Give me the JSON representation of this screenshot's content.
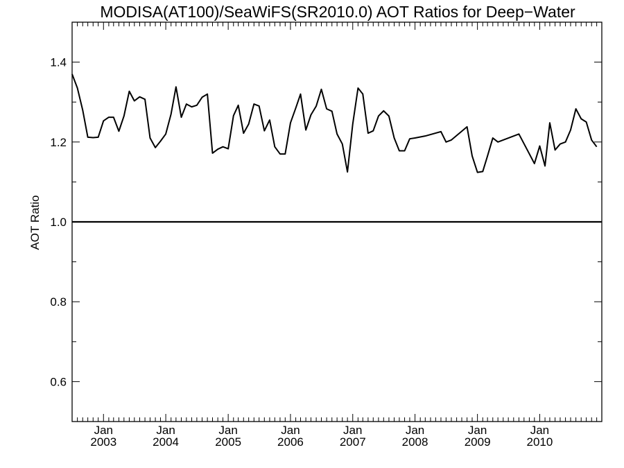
{
  "chart_data": {
    "type": "line",
    "title": "MODISA(AT100)/SeaWiFS(SR2010.0)  AOT Ratios for Deep−Water",
    "xlabel": "",
    "ylabel": "AOT Ratio",
    "xlim": [
      "2002-07-01",
      "2010-12-31"
    ],
    "ylim": [
      0.5,
      1.5
    ],
    "y_ticks": [
      "0.6",
      "0.8",
      "1.0",
      "1.2",
      "1.4"
    ],
    "x_ticks": [
      {
        "month": "Jan",
        "year": "2003",
        "date": "2003-01-01"
      },
      {
        "month": "Jan",
        "year": "2004",
        "date": "2004-01-01"
      },
      {
        "month": "Jan",
        "year": "2005",
        "date": "2005-01-01"
      },
      {
        "month": "Jan",
        "year": "2006",
        "date": "2006-01-01"
      },
      {
        "month": "Jan",
        "year": "2007",
        "date": "2007-01-01"
      },
      {
        "month": "Jan",
        "year": "2008",
        "date": "2008-01-01"
      },
      {
        "month": "Jan",
        "year": "2009",
        "date": "2009-01-01"
      },
      {
        "month": "Jan",
        "year": "2010",
        "date": "2010-01-01"
      }
    ],
    "reference_line": 1.0,
    "grid": false,
    "series": [
      {
        "x": [
          "2002-07-01",
          "2002-08-01",
          "2002-09-01",
          "2002-10-01",
          "2002-11-01",
          "2002-12-01",
          "2003-01-01",
          "2003-02-01",
          "2003-03-01",
          "2003-04-01",
          "2003-05-01",
          "2003-06-01",
          "2003-07-01",
          "2003-08-01",
          "2003-09-01",
          "2003-10-01",
          "2003-11-01",
          "2003-12-01",
          "2004-01-01",
          "2004-02-01",
          "2004-03-01",
          "2004-04-01",
          "2004-05-01",
          "2004-06-01",
          "2004-07-01",
          "2004-08-01",
          "2004-09-01",
          "2004-10-01",
          "2004-11-01",
          "2004-12-01",
          "2005-01-01",
          "2005-02-01",
          "2005-03-01",
          "2005-04-01",
          "2005-05-01",
          "2005-06-01",
          "2005-07-01",
          "2005-08-01",
          "2005-09-01",
          "2005-10-01",
          "2005-11-01",
          "2005-12-01",
          "2006-01-01",
          "2006-02-01",
          "2006-03-01",
          "2006-04-01",
          "2006-05-01",
          "2006-06-01",
          "2006-07-01",
          "2006-08-01",
          "2006-09-01",
          "2006-10-01",
          "2006-11-01",
          "2006-12-01",
          "2007-01-01",
          "2007-02-01",
          "2007-03-01",
          "2007-04-01",
          "2007-05-01",
          "2007-06-01",
          "2007-07-01",
          "2007-08-01",
          "2007-09-01",
          "2007-10-01",
          "2007-11-01",
          "2007-12-01",
          "2008-01-01",
          "2008-03-01",
          "2008-06-01",
          "2008-07-01",
          "2008-08-01",
          "2008-11-01",
          "2008-12-01",
          "2009-01-01",
          "2009-02-01",
          "2009-03-01",
          "2009-04-01",
          "2009-05-01",
          "2009-09-01",
          "2009-12-01",
          "2010-01-01",
          "2010-02-01",
          "2010-03-01",
          "2010-04-01",
          "2010-05-01",
          "2010-06-01",
          "2010-07-01",
          "2010-08-01",
          "2010-09-01",
          "2010-10-01",
          "2010-11-01",
          "2010-12-01"
        ],
        "y": [
          1.37,
          1.335,
          1.28,
          1.212,
          1.211,
          1.212,
          1.253,
          1.262,
          1.262,
          1.227,
          1.265,
          1.327,
          1.303,
          1.313,
          1.307,
          1.21,
          1.186,
          1.202,
          1.22,
          1.27,
          1.338,
          1.262,
          1.295,
          1.288,
          1.292,
          1.312,
          1.32,
          1.172,
          1.182,
          1.188,
          1.183,
          1.266,
          1.292,
          1.222,
          1.245,
          1.295,
          1.29,
          1.228,
          1.255,
          1.188,
          1.17,
          1.17,
          1.248,
          1.285,
          1.32,
          1.23,
          1.268,
          1.29,
          1.332,
          1.283,
          1.277,
          1.22,
          1.195,
          1.125,
          1.245,
          1.335,
          1.32,
          1.222,
          1.228,
          1.265,
          1.278,
          1.265,
          1.21,
          1.178,
          1.178,
          1.208,
          1.21,
          1.215,
          1.226,
          1.2,
          1.205,
          1.238,
          1.165,
          1.124,
          1.126,
          1.165,
          1.21,
          1.2,
          1.22,
          1.146,
          1.19,
          1.14,
          1.248,
          1.18,
          1.195,
          1.2,
          1.23,
          1.283,
          1.258,
          1.25,
          1.205,
          1.188
        ]
      }
    ]
  }
}
